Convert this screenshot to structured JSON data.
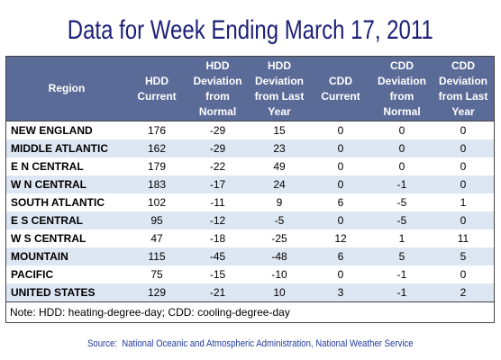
{
  "colors": {
    "title": "#1c1f78",
    "header_bg": "#5b6b98",
    "header_text": "#ffffff",
    "row_alt": "#dde6f3",
    "source": "#1f3a9c",
    "border": "#444444"
  },
  "chart_data": {
    "type": "table",
    "title": "Data for Week Ending March 17, 2011",
    "columns": [
      {
        "lines": [
          "Region"
        ]
      },
      {
        "lines": [
          "HDD",
          "Current"
        ]
      },
      {
        "lines": [
          "HDD",
          "Deviation",
          "from",
          "Normal"
        ]
      },
      {
        "lines": [
          "HDD",
          "Deviation",
          "from Last",
          "Year"
        ]
      },
      {
        "lines": [
          "CDD",
          "Current"
        ]
      },
      {
        "lines": [
          "CDD",
          "Deviation",
          "from",
          "Normal"
        ]
      },
      {
        "lines": [
          "CDD",
          "Deviation",
          "from Last",
          "Year"
        ]
      }
    ],
    "rows": [
      {
        "region": "NEW ENGLAND",
        "values": [
          176,
          -29,
          15,
          0,
          0,
          0
        ]
      },
      {
        "region": "MIDDLE ATLANTIC",
        "values": [
          162,
          -29,
          23,
          0,
          0,
          0
        ]
      },
      {
        "region": "E N CENTRAL",
        "values": [
          179,
          -22,
          49,
          0,
          0,
          0
        ]
      },
      {
        "region": "W N CENTRAL",
        "values": [
          183,
          -17,
          24,
          0,
          -1,
          0
        ]
      },
      {
        "region": "SOUTH ATLANTIC",
        "values": [
          102,
          -11,
          9,
          6,
          -5,
          1
        ]
      },
      {
        "region": "E S CENTRAL",
        "values": [
          95,
          -12,
          -5,
          0,
          -5,
          0
        ]
      },
      {
        "region": "W S CENTRAL",
        "values": [
          47,
          -18,
          -25,
          12,
          1,
          11
        ]
      },
      {
        "region": "MOUNTAIN",
        "values": [
          115,
          -45,
          -48,
          6,
          5,
          5
        ]
      },
      {
        "region": "PACIFIC",
        "values": [
          75,
          -15,
          -10,
          0,
          -1,
          0
        ]
      },
      {
        "region": "UNITED STATES",
        "values": [
          129,
          -21,
          10,
          3,
          -1,
          2
        ]
      }
    ],
    "note": "Note: HDD: heating-degree-day; CDD: cooling-degree-day",
    "source": "Source:  National Oceanic and Atmospheric Administration, National Weather Service"
  }
}
